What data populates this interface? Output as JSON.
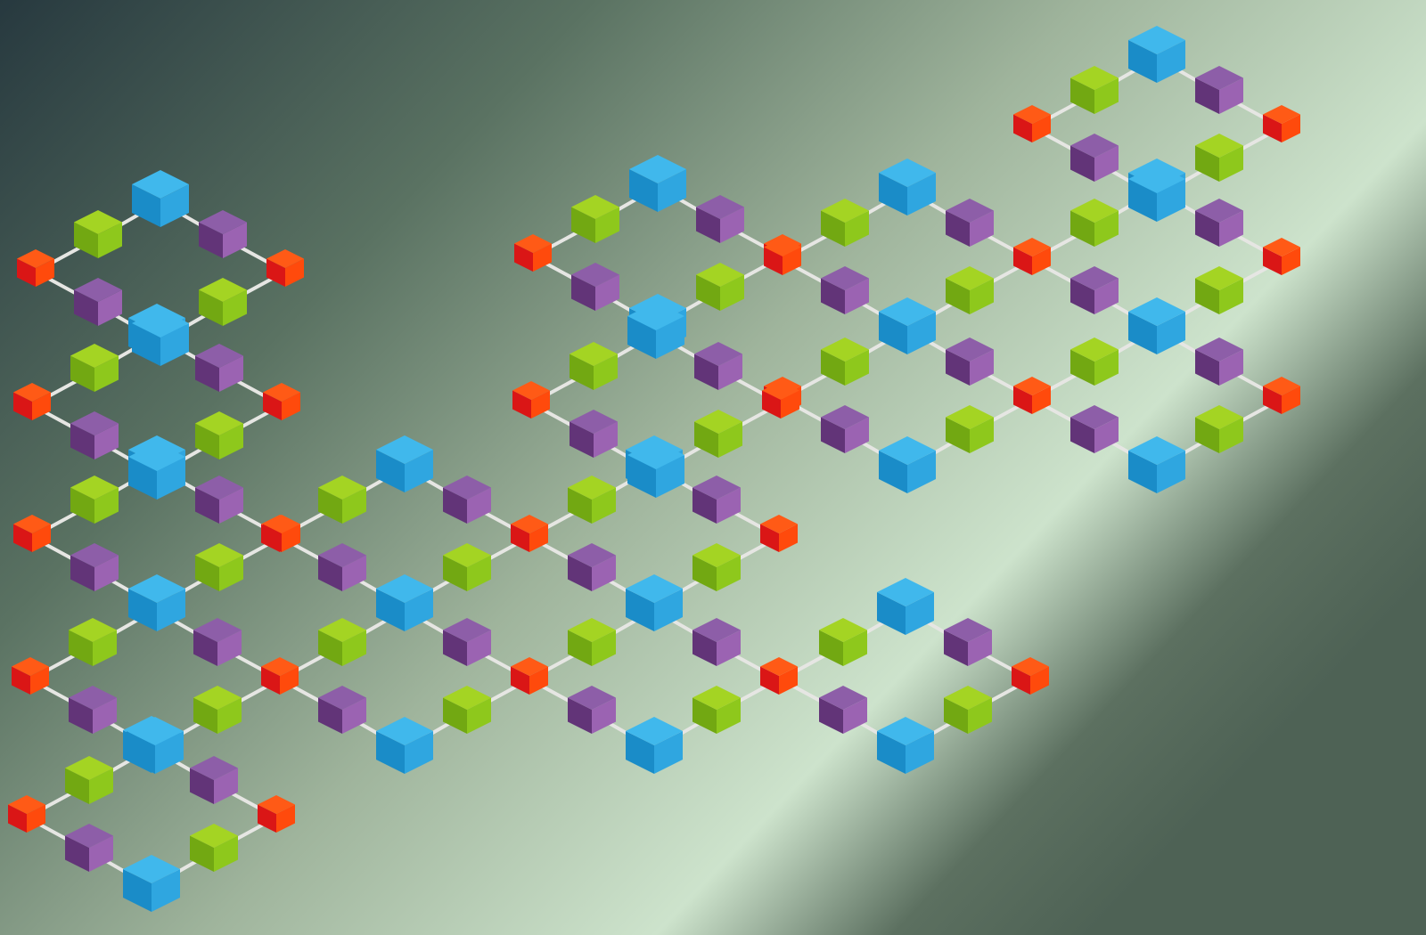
{
  "scene": {
    "background": {
      "stops": [
        "#27393f",
        "#5a7262",
        "#9fb49c",
        "#cde3cc",
        "#5c7060",
        "#4e6255"
      ]
    },
    "link_color": "#e6e6e3",
    "palette": {
      "blue": {
        "top": "#40b8ec",
        "left": "#1a8cc8",
        "right": "#2fa6e0"
      },
      "green": {
        "top": "#a4d423",
        "left": "#72a812",
        "right": "#8ec81c"
      },
      "purple": {
        "top": "#8d5ea8",
        "left": "#623478",
        "right": "#9b63b2"
      },
      "red": {
        "top": "#ff5a16",
        "left": "#da1616",
        "right": "#ff4a0c"
      }
    },
    "lattices": [
      {
        "name": "left-column",
        "node_count": 71
      },
      {
        "name": "center-block",
        "node_count": 63
      },
      {
        "name": "right-block",
        "node_count": 60
      }
    ]
  }
}
